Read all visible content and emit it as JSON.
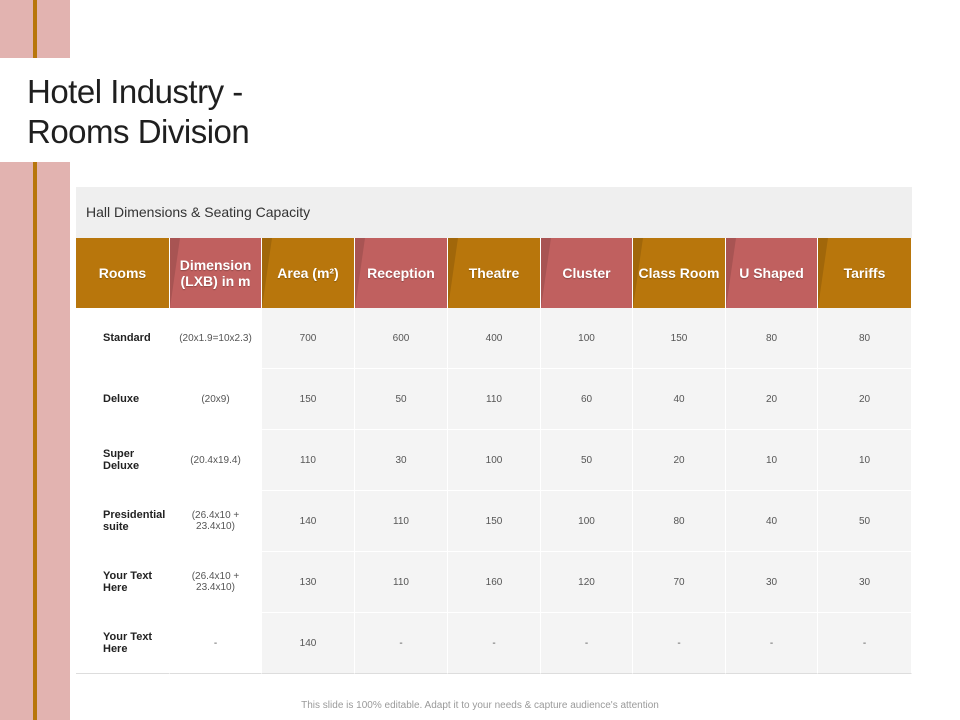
{
  "title": {
    "line1": "Hotel Industry -",
    "line2": "Rooms Division"
  },
  "table": {
    "caption": "Hall Dimensions & Seating Capacity",
    "headers": [
      {
        "label": "Rooms",
        "color": "gold"
      },
      {
        "label": "Dimension (LXB) in m",
        "color": "rose"
      },
      {
        "label": "Area (m²)",
        "color": "gold"
      },
      {
        "label": "Reception",
        "color": "rose"
      },
      {
        "label": "Theatre",
        "color": "gold"
      },
      {
        "label": "Cluster",
        "color": "rose"
      },
      {
        "label": "Class Room",
        "color": "gold"
      },
      {
        "label": "U Shaped",
        "color": "rose"
      },
      {
        "label": "Tariffs",
        "color": "gold"
      }
    ],
    "rows": [
      [
        "Standard",
        "(20x1.9=10x2.3)",
        "700",
        "600",
        "400",
        "100",
        "150",
        "80",
        "80"
      ],
      [
        "Deluxe",
        "(20x9)",
        "150",
        "50",
        "110",
        "60",
        "40",
        "20",
        "20"
      ],
      [
        "Super Deluxe",
        "(20.4x19.4)",
        "110",
        "30",
        "100",
        "50",
        "20",
        "10",
        "10"
      ],
      [
        "Presidential suite",
        "(26.4x10 + 23.4x10)",
        "140",
        "110",
        "150",
        "100",
        "80",
        "40",
        "50"
      ],
      [
        "Your Text Here",
        "(26.4x10 + 23.4x10)",
        "130",
        "110",
        "160",
        "120",
        "70",
        "30",
        "30"
      ],
      [
        "Your Text Here",
        "-",
        "140",
        "-",
        "-",
        "-",
        "-",
        "-",
        "-"
      ]
    ]
  },
  "footer": "This slide is 100% editable. Adapt it to your needs & capture audience's attention",
  "colors": {
    "gold": "#b8760c",
    "rose": "#c0605f",
    "side_band": "#e2b3b0"
  }
}
